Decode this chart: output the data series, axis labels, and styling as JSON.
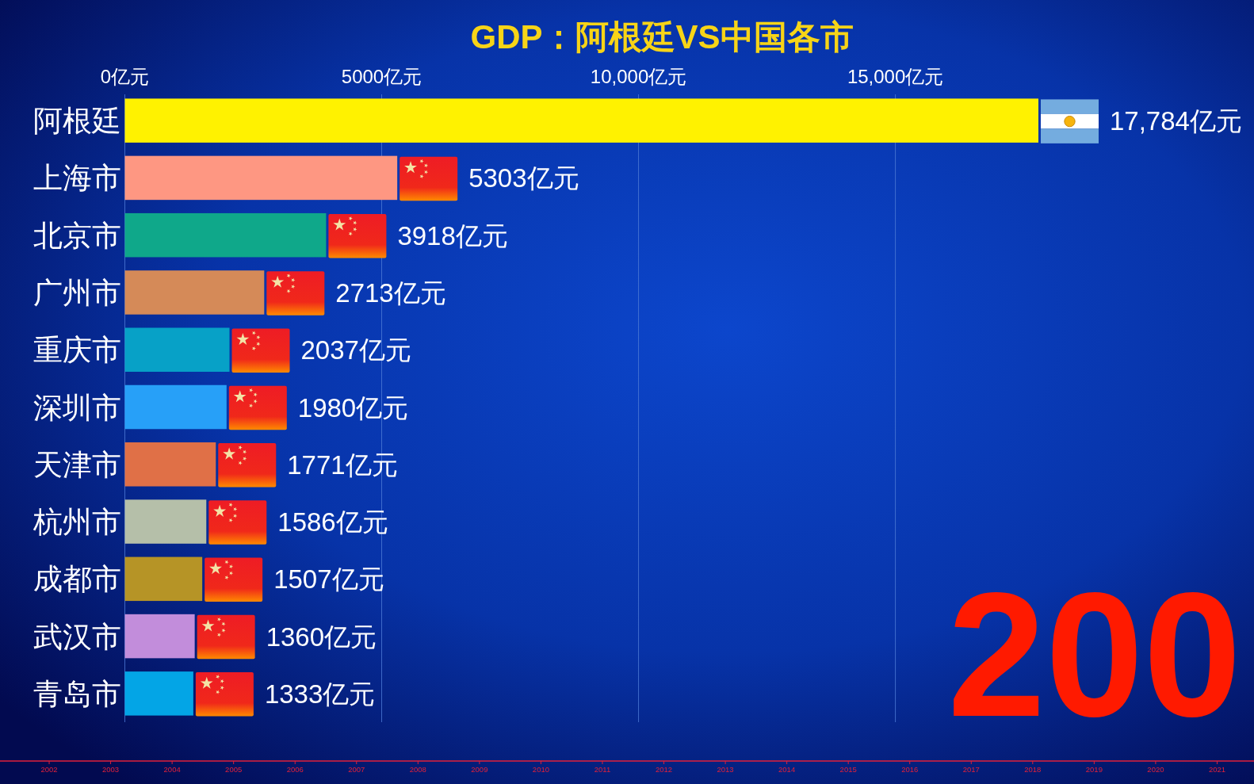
{
  "chart_data": {
    "type": "bar",
    "orientation": "horizontal",
    "title": "GDP：阿根廷VS中国各市",
    "categories": [
      "阿根廷",
      "上海市",
      "北京市",
      "广州市",
      "重庆市",
      "深圳市",
      "天津市",
      "杭州市",
      "成都市",
      "武汉市",
      "青岛市"
    ],
    "values": [
      17784,
      5303,
      3918,
      2713,
      2037,
      1980,
      1771,
      1586,
      1507,
      1360,
      1333
    ],
    "colors": [
      "#fff200",
      "#fe9782",
      "#0fa88a",
      "#d58a58",
      "#07a1c7",
      "#27a0f8",
      "#e07047",
      "#b5bfa9",
      "#b69426",
      "#c28ddb",
      "#03a5e6"
    ],
    "value_labels": [
      "17,784亿元",
      "5303亿元",
      "3918亿元",
      "2713亿元",
      "2037亿元",
      "1980亿元",
      "1771亿元",
      "1586亿元",
      "1507亿元",
      "1360亿元",
      "1333亿元"
    ],
    "xlim": [
      0,
      17784
    ],
    "xticks": [
      {
        "value": 0,
        "label": "0亿元"
      },
      {
        "value": 5000,
        "label": "5000亿元"
      },
      {
        "value": 10000,
        "label": "10,000亿元"
      },
      {
        "value": 15000,
        "label": "15,000亿元"
      }
    ],
    "x2lim": [
      2001.2,
      2021.6
    ],
    "x2ticks": [
      2002,
      2003,
      2004,
      2005,
      2006,
      2007,
      2008,
      2009,
      2010,
      2011,
      2012,
      2013,
      2014,
      2015,
      2016,
      2017,
      2018,
      2019,
      2020,
      2021
    ],
    "grid": "x",
    "annotations": [
      "200"
    ]
  }
}
